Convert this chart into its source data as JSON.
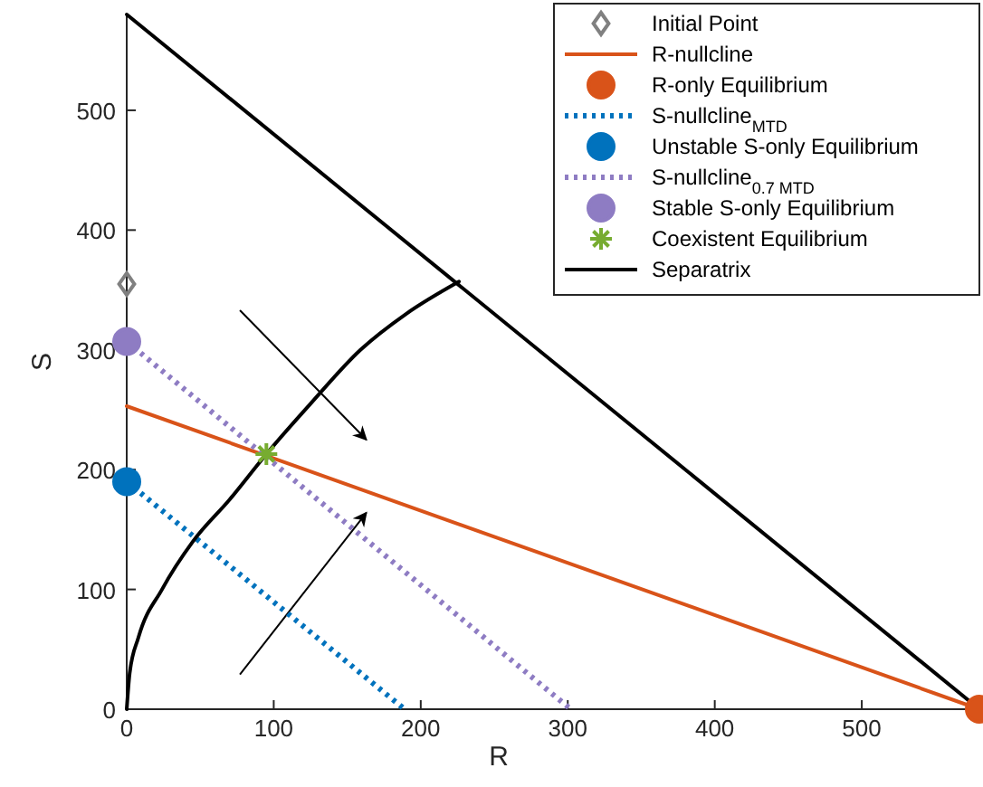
{
  "chart_data": {
    "type": "line",
    "xlabel": "R",
    "ylabel": "S",
    "xlim": [
      0,
      580
    ],
    "ylim": [
      0,
      580
    ],
    "xticks": [
      0,
      100,
      200,
      300,
      400,
      500
    ],
    "yticks": [
      0,
      100,
      200,
      300,
      400,
      500
    ],
    "grid": false,
    "legend": "top right",
    "series": [
      {
        "name": "Initial Point",
        "type": "scatter",
        "marker": "diamond",
        "color": "#808080",
        "x": [
          0
        ],
        "values": [
          355
        ]
      },
      {
        "name": "R-nullcline",
        "marker": "none",
        "line_style": "solid",
        "color": "#d95319",
        "x": [
          0,
          580
        ],
        "values": [
          253,
          0
        ]
      },
      {
        "name": "R-only Equilibrium",
        "type": "scatter",
        "marker": "circle",
        "color": "#d95319",
        "x": [
          580
        ],
        "values": [
          0
        ]
      },
      {
        "name": "S-nullcline$_{MTD}$",
        "marker": "none",
        "line_style": "dotted",
        "color": "#0072bd",
        "x": [
          0,
          189
        ],
        "values": [
          190,
          0
        ]
      },
      {
        "name": "Unstable S-only Equilibrium",
        "type": "scatter",
        "marker": "circle",
        "color": "#0072bd",
        "x": [
          0
        ],
        "values": [
          190
        ]
      },
      {
        "name": "S-nullcline$_{0.7 MTD}$",
        "marker": "none",
        "line_style": "dotted",
        "color": "#8e7cc3",
        "x": [
          0,
          302
        ],
        "values": [
          307,
          0
        ]
      },
      {
        "name": "Stable S-only Equilibrium",
        "type": "scatter",
        "marker": "circle",
        "color": "#8e7cc3",
        "x": [
          0
        ],
        "values": [
          307
        ]
      },
      {
        "name": "Coexistent Equilibrium",
        "type": "scatter",
        "marker": "cross",
        "color": "#77ac30",
        "x": [
          95
        ],
        "values": [
          213
        ]
      },
      {
        "name": "Separatrix",
        "marker": "none",
        "line_style": "solid",
        "color": "#000000",
        "x": [
          0,
          2,
          8,
          24,
          45,
          70,
          95,
          125,
          159,
          190,
          226
        ],
        "values": [
          0,
          30,
          60,
          100,
          140,
          175,
          213,
          255,
          300,
          330,
          357
        ]
      },
      {
        "marker": "none",
        "line_style": "solid",
        "color": "#000000",
        "x": [
          0,
          580
        ],
        "values": [
          580,
          0
        ]
      }
    ]
  }
}
